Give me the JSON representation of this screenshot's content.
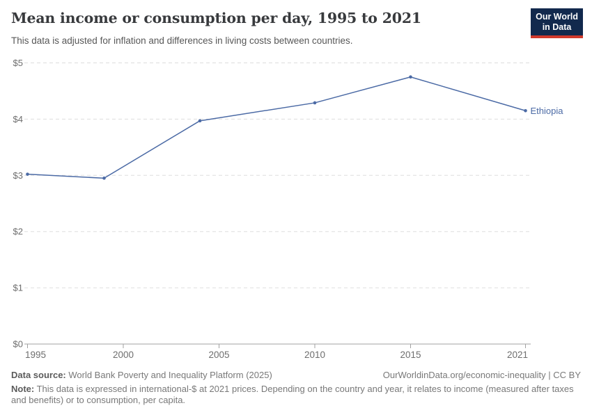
{
  "header": {
    "title": "Mean income or consumption per day, 1995 to 2021",
    "subtitle": "This data is adjusted for inflation and differences in living costs between countries.",
    "logo": {
      "line1": "Our World",
      "line2": "in Data"
    }
  },
  "chart_data": {
    "type": "line",
    "title": "Mean income or consumption per day, 1995 to 2021",
    "series": [
      {
        "name": "Ethiopia",
        "color": "#4b6aa5",
        "x": [
          1995,
          1999,
          2004,
          2010,
          2015,
          2021
        ],
        "values": [
          3.02,
          2.95,
          3.97,
          4.29,
          4.75,
          4.15
        ]
      }
    ],
    "xlabel": "",
    "ylabel": "",
    "x_ticks": [
      1995,
      2000,
      2005,
      2010,
      2015,
      2021
    ],
    "x_tick_labels": [
      "1995",
      "2000",
      "2005",
      "2010",
      "2015",
      "2021"
    ],
    "y_ticks": [
      0,
      1,
      2,
      3,
      4,
      5
    ],
    "y_tick_labels": [
      "$0",
      "$1",
      "$2",
      "$3",
      "$4",
      "$5"
    ],
    "xlim": [
      1995,
      2021.3
    ],
    "ylim": [
      0,
      5
    ],
    "grid": "horizontal-dashed",
    "legend_position": "end-of-line",
    "colors": {
      "grid_line": "#dddddd",
      "axis_line": "#a1a1a1",
      "tick_label": "#6e6e6e"
    }
  },
  "footer": {
    "data_source_label": "Data source:",
    "data_source_value": " World Bank Poverty and Inequality Platform (2025)",
    "link_text": "OurWorldinData.org/economic-inequality | CC BY",
    "note_label": "Note:",
    "note_text": " This data is expressed in international-$ at 2021 prices. Depending on the country and year, it relates to income (measured after taxes and benefits) or to consumption, per capita."
  }
}
